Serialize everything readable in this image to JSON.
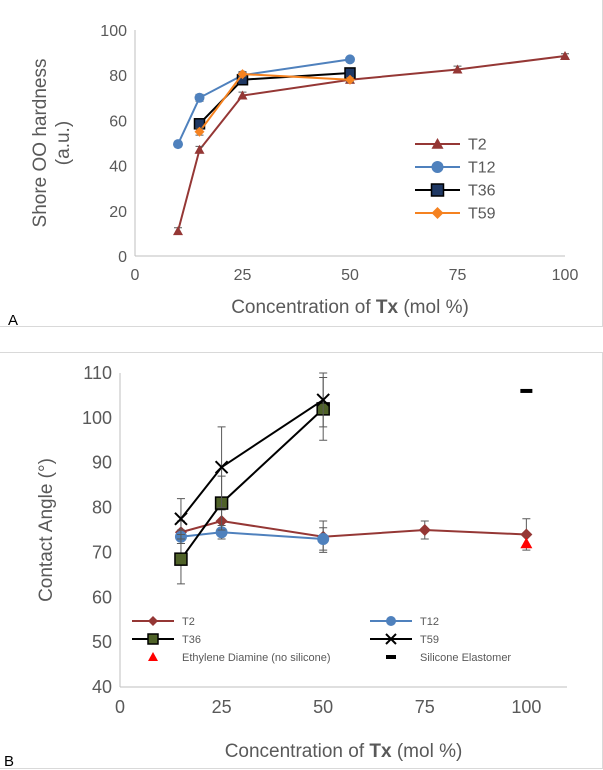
{
  "panels": [
    {
      "letter": "A"
    },
    {
      "letter": "B"
    }
  ],
  "chart_data": [
    {
      "type": "line",
      "xlabel_prefix": "Concentration of ",
      "xlabel_bold": "Tx",
      "xlabel_suffix": " (mol %)",
      "ylabel_lines": [
        "Shore OO hardness",
        "(a.u.)"
      ],
      "xlim": [
        0,
        100
      ],
      "ylim": [
        0,
        100
      ],
      "xticks": [
        0,
        25,
        50,
        75,
        100
      ],
      "yticks": [
        0,
        20,
        40,
        60,
        80,
        100
      ],
      "grid": false,
      "legend_position": "right",
      "series": [
        {
          "name": "T2",
          "color": "#953735",
          "marker": "triangle",
          "x": [
            10,
            15,
            25,
            50,
            75,
            100
          ],
          "y": [
            11,
            47,
            71,
            78,
            82.5,
            88.5
          ],
          "err": [
            1.5,
            1.5,
            1.5,
            1.5,
            1.5,
            1
          ]
        },
        {
          "name": "T12",
          "color": "#4f81bd",
          "marker": "circle",
          "x": [
            10,
            15,
            25,
            50
          ],
          "y": [
            49.5,
            70,
            80,
            87
          ],
          "err": [
            1,
            1.5,
            1.5,
            1
          ]
        },
        {
          "name": "T36",
          "color": "#000000",
          "marker": "square",
          "fill": "#1f3864",
          "x": [
            15,
            25,
            50
          ],
          "y": [
            58.5,
            78,
            81
          ],
          "err": [
            1.5,
            1.5,
            1
          ]
        },
        {
          "name": "T59",
          "color": "#f58220",
          "marker": "diamond",
          "x": [
            15,
            25,
            50
          ],
          "y": [
            55,
            80.5,
            78
          ],
          "err": [
            1.5,
            1,
            1
          ]
        }
      ]
    },
    {
      "type": "line",
      "xlabel_prefix": "Concentration of ",
      "xlabel_bold": "Tx",
      "xlabel_suffix": " (mol %)",
      "ylabel_lines": [
        "Contact Angle (°)"
      ],
      "xlim": [
        0,
        110
      ],
      "ylim": [
        40,
        110
      ],
      "xticks": [
        0,
        25,
        50,
        75,
        100
      ],
      "yticks": [
        40,
        50,
        60,
        70,
        80,
        90,
        100,
        110
      ],
      "grid": false,
      "legend_position": "bottom",
      "series": [
        {
          "name": "T2",
          "color": "#953735",
          "marker": "diamond",
          "x": [
            15,
            25,
            50,
            75,
            100
          ],
          "y": [
            74.5,
            77,
            73.5,
            75,
            74
          ],
          "err": [
            2.5,
            2.5,
            3.5,
            2,
            3.5
          ]
        },
        {
          "name": "T12",
          "color": "#4f81bd",
          "marker": "circle",
          "x": [
            15,
            25,
            50
          ],
          "y": [
            73.5,
            74.5,
            73
          ],
          "err": [
            1.5,
            1.5,
            2.5
          ]
        },
        {
          "name": "T36",
          "color": "#000000",
          "marker": "square",
          "fill": "#4f6228",
          "x": [
            15,
            25,
            50
          ],
          "y": [
            68.5,
            81,
            102
          ],
          "err": [
            5.5,
            6,
            7
          ]
        },
        {
          "name": "T59",
          "color": "#000000",
          "marker": "x",
          "x": [
            15,
            25,
            50
          ],
          "y": [
            77.5,
            89,
            104
          ],
          "err": [
            4.5,
            9,
            6
          ]
        },
        {
          "name": "Ethylene Diamine (no silicone)",
          "color": "#ff0000",
          "marker": "triangle",
          "line": false,
          "x": [
            100
          ],
          "y": [
            72
          ],
          "err": [
            0
          ]
        },
        {
          "name": "Silicone Elastomer",
          "color": "#000000",
          "marker": "dash",
          "line": false,
          "x": [
            100
          ],
          "y": [
            106
          ],
          "err": [
            0
          ]
        }
      ]
    }
  ]
}
